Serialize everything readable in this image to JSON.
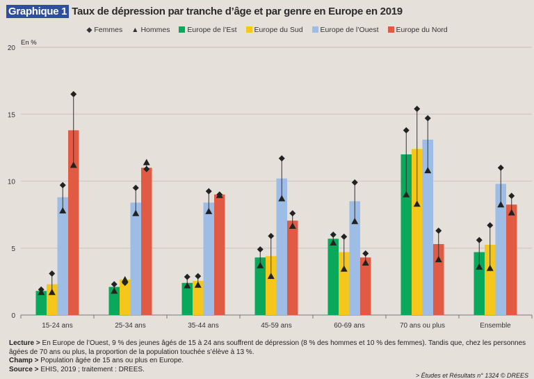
{
  "title": {
    "tag": "Graphique 1",
    "text": "Taux de dépression par tranche d’âge et par genre en Europe en 2019"
  },
  "legend": {
    "femmes": "Femmes",
    "hommes": "Hommes"
  },
  "colors": {
    "Europe de l’Est": "#0aa85a",
    "Europe du Sud": "#f5c71a",
    "Europe de l’Ouest": "#9dbde6",
    "Europe du Nord": "#e05a44",
    "markers": "#222222",
    "title_tag": "#2d4f9e"
  },
  "chart_data": {
    "type": "bar",
    "ylabel": "En %",
    "ylim": [
      0,
      20
    ],
    "yticks": [
      0,
      5,
      10,
      15,
      20
    ],
    "grid": true,
    "legend_position": "top",
    "categories": [
      "15-24 ans",
      "25-34 ans",
      "35-44 ans",
      "45-59 ans",
      "60-69 ans",
      "70 ans ou plus",
      "Ensemble"
    ],
    "series": [
      {
        "name": "Europe de l’Est",
        "values": [
          1.8,
          2.1,
          2.4,
          4.3,
          5.7,
          12.0,
          4.7
        ],
        "femmes": [
          1.9,
          2.3,
          2.85,
          4.9,
          6.0,
          13.8,
          5.6
        ],
        "hommes": [
          1.7,
          1.8,
          2.2,
          3.7,
          5.4,
          9.0,
          3.6
        ]
      },
      {
        "name": "Europe du Sud",
        "values": [
          2.3,
          2.65,
          2.55,
          4.4,
          4.7,
          12.4,
          5.25
        ],
        "femmes": [
          3.1,
          2.4,
          2.9,
          5.9,
          5.85,
          15.4,
          6.7
        ],
        "hommes": [
          1.7,
          2.65,
          2.25,
          2.9,
          3.45,
          8.3,
          3.5
        ]
      },
      {
        "name": "Europe de l’Ouest",
        "values": [
          8.8,
          8.4,
          8.4,
          10.2,
          8.5,
          13.1,
          9.8
        ],
        "femmes": [
          9.7,
          9.5,
          9.25,
          11.7,
          9.9,
          14.7,
          11.0
        ],
        "hommes": [
          7.8,
          7.6,
          7.75,
          8.7,
          7.0,
          10.8,
          8.25
        ]
      },
      {
        "name": "Europe du Nord",
        "values": [
          13.8,
          11.0,
          9.0,
          7.05,
          4.3,
          5.3,
          8.25
        ],
        "femmes": [
          16.5,
          10.9,
          9.0,
          7.6,
          4.6,
          6.3,
          8.9
        ],
        "hommes": [
          11.2,
          11.4,
          8.95,
          6.65,
          3.9,
          4.15,
          7.65
        ]
      }
    ]
  },
  "notes": {
    "lecture_label": "Lecture >",
    "lecture": "En Europe de l’Ouest, 9 % des jeunes âgés de 15 à 24 ans souffrent de dépression (8 % des hommes et 10 % des femmes). Tandis que, chez les personnes âgées de 70 ans ou plus, la proportion de la population touchée s’élève à 13 %.",
    "champ_label": "Champ >",
    "champ": "Population âgée de 15 ans ou plus en Europe.",
    "source_label": "Source >",
    "source": "EHIS, 2019 ; traitement : DREES."
  },
  "credit": "> Études et Résultats n° 1324 © DREES"
}
